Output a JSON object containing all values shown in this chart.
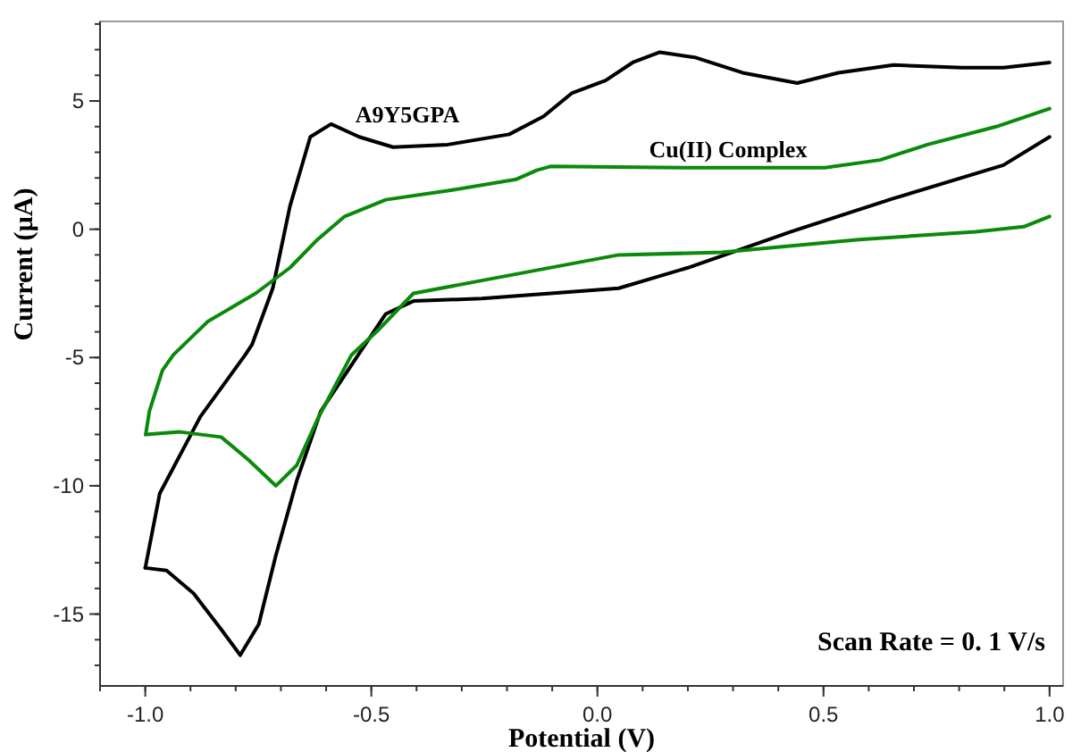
{
  "chart_data": {
    "type": "line",
    "xlabel": "Potential (V)",
    "ylabel": "Current (µA)",
    "xlim": [
      -1.1,
      1.03
    ],
    "ylim": [
      -17.8,
      8.1
    ],
    "xticks": [
      {
        "value": -1.0,
        "label": "-1.0"
      },
      {
        "value": -0.5,
        "label": "-0.5"
      },
      {
        "value": 0.0,
        "label": "0.0"
      },
      {
        "value": 0.5,
        "label": "0.5"
      },
      {
        "value": 1.0,
        "label": "1.0"
      }
    ],
    "yticks": [
      -15,
      -10,
      -5,
      0,
      5
    ],
    "grid": false,
    "legend": false,
    "marker": "none",
    "line_style": "solid",
    "annotations": [
      "Scan Rate = 0. 1 V/s"
    ],
    "series": [
      {
        "name": "A9Y5GPA",
        "color": "#000000",
        "x": [
          -1.0,
          -0.968,
          -0.878,
          -0.779,
          -0.764,
          -0.718,
          -0.68,
          -0.635,
          -0.589,
          -0.527,
          -0.452,
          -0.331,
          -0.195,
          -0.119,
          -0.057,
          0.018,
          0.078,
          0.138,
          0.215,
          0.321,
          0.442,
          0.533,
          0.655,
          0.807,
          0.898,
          1.0
        ],
        "values": [
          -13.2,
          -10.3,
          -7.3,
          -4.9,
          -4.5,
          -2.3,
          0.9,
          3.6,
          4.1,
          3.6,
          3.2,
          3.3,
          3.7,
          4.4,
          5.3,
          5.8,
          6.5,
          6.9,
          6.7,
          6.1,
          5.7,
          6.1,
          6.4,
          6.3,
          6.3,
          6.5
        ]
      },
      {
        "color": "#000000",
        "x": [
          -1.0,
          -0.953,
          -0.893,
          -0.832,
          -0.79,
          -0.749,
          -0.711,
          -0.665,
          -0.612,
          -0.529,
          -0.468,
          -0.407,
          -0.256,
          -0.104,
          0.047,
          0.2,
          0.427,
          0.655,
          0.898,
          1.0
        ],
        "values": [
          -13.2,
          -13.3,
          -14.2,
          -15.6,
          -16.6,
          -15.4,
          -12.7,
          -9.8,
          -7.1,
          -4.9,
          -3.3,
          -2.8,
          -2.7,
          -2.5,
          -2.3,
          -1.5,
          -0.1,
          1.2,
          2.5,
          3.6
        ]
      },
      {
        "name": "Cu(II) Complex",
        "color": "#0a8a0a",
        "x": [
          -0.999,
          -0.991,
          -0.962,
          -0.938,
          -0.862,
          -0.756,
          -0.68,
          -0.619,
          -0.559,
          -0.468,
          -0.331,
          -0.179,
          -0.134,
          -0.104,
          0.2,
          0.503,
          0.625,
          0.73,
          0.882,
          1.0
        ],
        "values": [
          -8.0,
          -7.1,
          -5.5,
          -4.9,
          -3.6,
          -2.5,
          -1.5,
          -0.4,
          0.5,
          1.15,
          1.5,
          1.95,
          2.3,
          2.45,
          2.4,
          2.4,
          2.7,
          3.3,
          4.0,
          4.7
        ]
      },
      {
        "color": "#0a8a0a",
        "x": [
          -0.999,
          -0.923,
          -0.832,
          -0.771,
          -0.711,
          -0.665,
          -0.619,
          -0.544,
          -0.483,
          -0.407,
          -0.256,
          0.047,
          0.275,
          0.579,
          0.837,
          0.943,
          1.0
        ],
        "values": [
          -8.0,
          -7.9,
          -8.1,
          -9.0,
          -10.0,
          -9.2,
          -7.4,
          -4.9,
          -3.9,
          -2.5,
          -2.0,
          -1.0,
          -0.9,
          -0.4,
          -0.1,
          0.1,
          0.5
        ]
      }
    ]
  }
}
